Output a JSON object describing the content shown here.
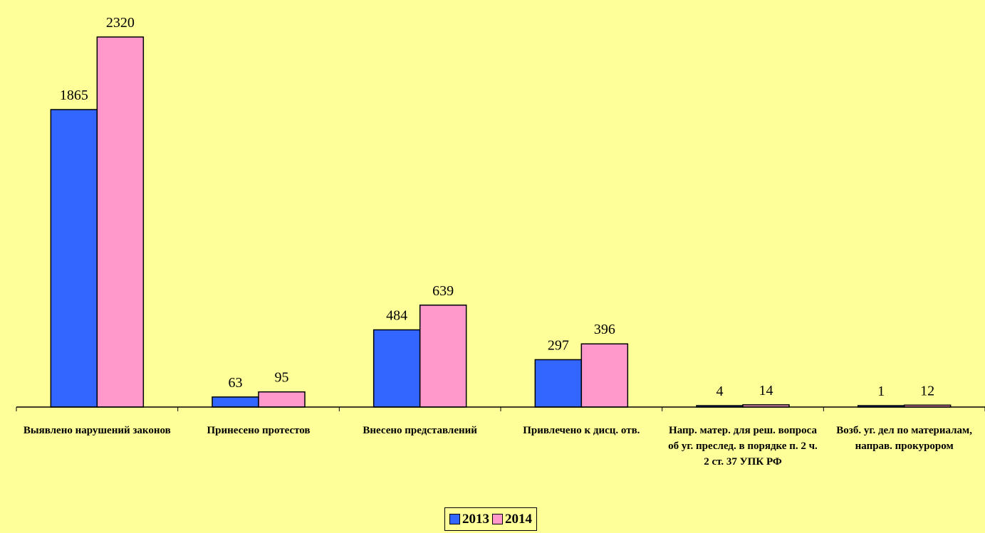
{
  "chart_data": {
    "type": "bar",
    "categories": [
      "Выявлено нарушений законов",
      "Принесено протестов",
      "Внесено представлений",
      "Привлечено к дисц. отв.",
      "Напр. матер. для реш. вопроса об уг. преслед. в порядке п. 2 ч. 2 ст. 37 УПК РФ",
      "Возб. уг. дел по материалам, направ. прокурором"
    ],
    "series": [
      {
        "name": "2013",
        "color": "#3366FF",
        "values": [
          1865,
          63,
          484,
          297,
          4,
          1
        ]
      },
      {
        "name": "2014",
        "color": "#FF99CC",
        "values": [
          2320,
          95,
          639,
          396,
          14,
          12
        ]
      }
    ],
    "ylim": [
      0,
      2320
    ],
    "grid": false,
    "legend": "bottom-center",
    "data_labels": true
  }
}
